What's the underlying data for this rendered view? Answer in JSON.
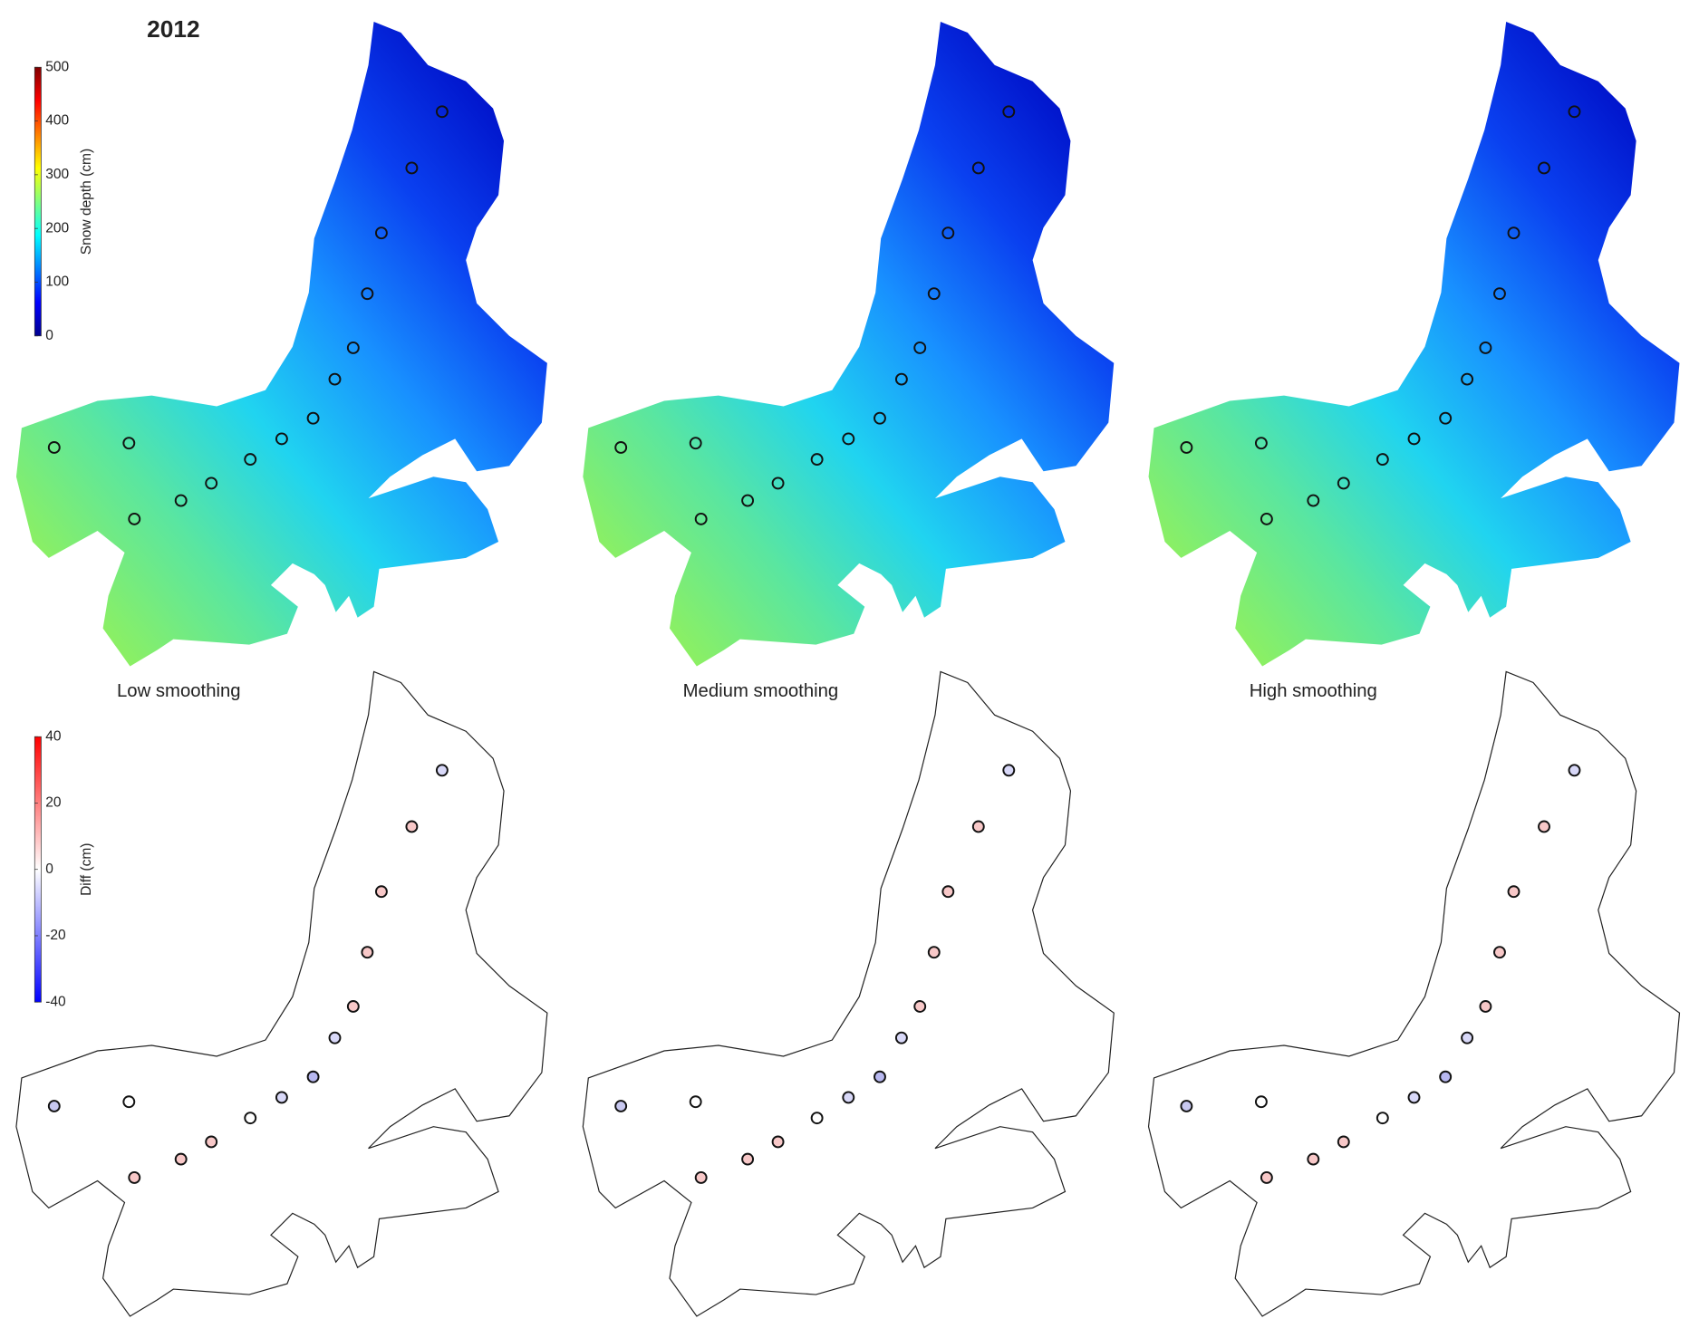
{
  "chart_data": [
    {
      "type": "map",
      "title": "2012",
      "colorbar_label": "Snow depth (cm)",
      "clim": [
        0,
        500
      ],
      "cticks": [
        0,
        100,
        200,
        300,
        400,
        500
      ],
      "colormap": "jet"
    },
    {
      "type": "map",
      "titles": [
        "Low smoothing",
        "Medium smoothing",
        "High smoothing"
      ],
      "colorbar_label": "Diff (cm)",
      "clim": [
        -40,
        40
      ],
      "cticks": [
        -40,
        -20,
        0,
        20,
        40
      ],
      "colormap": "bwr"
    }
  ]
}
